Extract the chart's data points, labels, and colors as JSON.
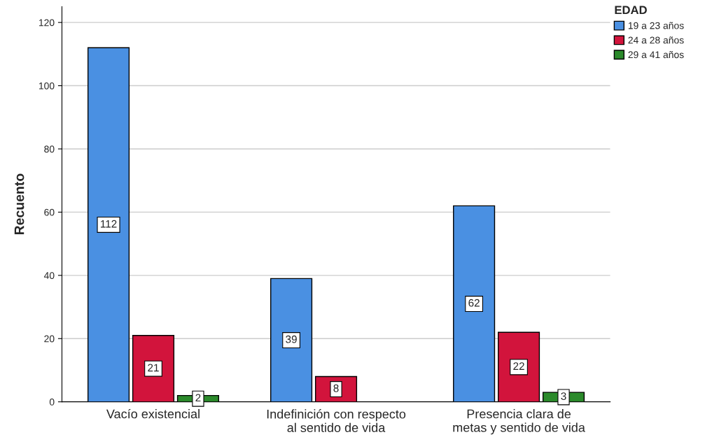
{
  "chart_data": {
    "type": "bar",
    "ylabel": "Recuento",
    "legend_title": "EDAD",
    "categories": [
      "Vacío existencial",
      "Indefinición con respecto\nal sentido de vida",
      "Presencia clara de\nmetas y sentido de vida"
    ],
    "series": [
      {
        "name": "19 a 23 años",
        "color": "#4a90e2",
        "values": [
          112,
          39,
          62
        ]
      },
      {
        "name": "24 a 28 años",
        "color": "#d2143c",
        "values": [
          21,
          8,
          22
        ]
      },
      {
        "name": "29 a 41 años",
        "color": "#2b8a2b",
        "values": [
          2,
          null,
          3
        ]
      }
    ],
    "ylim": [
      0,
      125
    ],
    "yticks": [
      0,
      20,
      40,
      60,
      80,
      100,
      120
    ],
    "grid": "y",
    "legend": "top right",
    "data_labels": true
  }
}
